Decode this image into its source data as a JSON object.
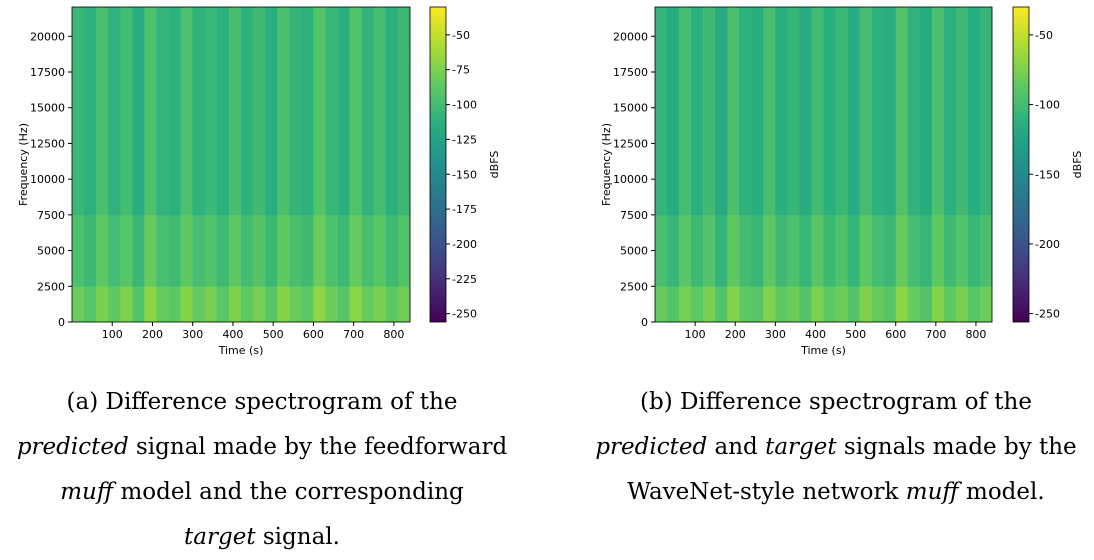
{
  "chart_data": [
    {
      "type": "heatmap",
      "xlabel": "Time (s)",
      "ylabel": "Frequency (Hz)",
      "colorbar_label": "dBFS",
      "xlim": [
        0,
        840
      ],
      "xticks": [
        100,
        200,
        300,
        400,
        500,
        600,
        700,
        800
      ],
      "ylim": [
        0,
        22050
      ],
      "yticks": [
        0,
        2500,
        5000,
        7500,
        10000,
        12500,
        15000,
        17500,
        20000
      ],
      "zlim": [
        -256,
        -30
      ],
      "zticks": [
        -50,
        -75,
        -100,
        -125,
        -150,
        -175,
        -200,
        -225,
        -250
      ],
      "colormap": "viridis",
      "x_bins": [
        0,
        30,
        60,
        90,
        120,
        150,
        180,
        210,
        240,
        270,
        300,
        330,
        360,
        390,
        420,
        450,
        480,
        510,
        540,
        570,
        600,
        630,
        660,
        690,
        720,
        750,
        780,
        810,
        840
      ],
      "y_bins": [
        0,
        2500,
        7500,
        22050
      ],
      "z": [
        [
          -82,
          -90,
          -76,
          -86,
          -75,
          -92,
          -70,
          -84,
          -88,
          -72,
          -85,
          -78,
          -90,
          -74,
          -86,
          -78,
          -90,
          -72,
          -82,
          -88,
          -68,
          -82,
          -90,
          -70,
          -84,
          -76,
          -88,
          -80
        ],
        [
          -95,
          -103,
          -88,
          -100,
          -90,
          -105,
          -84,
          -98,
          -102,
          -86,
          -99,
          -93,
          -103,
          -88,
          -100,
          -92,
          -104,
          -86,
          -97,
          -101,
          -82,
          -96,
          -103,
          -84,
          -98,
          -90,
          -102,
          -94
        ],
        [
          -105,
          -112,
          -98,
          -110,
          -100,
          -115,
          -95,
          -108,
          -112,
          -96,
          -110,
          -104,
          -113,
          -99,
          -110,
          -102,
          -114,
          -97,
          -108,
          -111,
          -92,
          -106,
          -113,
          -94,
          -109,
          -100,
          -112,
          -104
        ]
      ],
      "caption": [
        [
          {
            "text": "(a) Difference spectrogram of the"
          }
        ],
        [
          {
            "text": "predicted",
            "italic": true
          },
          {
            "text": " signal made by the feedforward"
          }
        ],
        [
          {
            "text": "muff",
            "italic": true
          },
          {
            "text": " model and the corresponding"
          }
        ],
        [
          {
            "text": "target",
            "italic": true
          },
          {
            "text": " signal."
          }
        ]
      ]
    },
    {
      "type": "heatmap",
      "xlabel": "Time (s)",
      "ylabel": "Frequency (Hz)",
      "colorbar_label": "dBFS",
      "xlim": [
        0,
        840
      ],
      "xticks": [
        100,
        200,
        300,
        400,
        500,
        600,
        700,
        800
      ],
      "ylim": [
        0,
        22050
      ],
      "yticks": [
        0,
        2500,
        5000,
        7500,
        10000,
        12500,
        15000,
        17500,
        20000
      ],
      "zlim": [
        -256,
        -30
      ],
      "zticks": [
        -50,
        -100,
        -150,
        -200,
        -250
      ],
      "colormap": "viridis",
      "x_bins": [
        0,
        30,
        60,
        90,
        120,
        150,
        180,
        210,
        240,
        270,
        300,
        330,
        360,
        390,
        420,
        450,
        480,
        510,
        540,
        570,
        600,
        630,
        660,
        690,
        720,
        750,
        780,
        810,
        840
      ],
      "y_bins": [
        0,
        2500,
        7500,
        22050
      ],
      "z": [
        [
          -84,
          -92,
          -78,
          -88,
          -76,
          -94,
          -72,
          -86,
          -90,
          -74,
          -87,
          -80,
          -92,
          -76,
          -88,
          -80,
          -92,
          -74,
          -84,
          -90,
          -70,
          -84,
          -92,
          -72,
          -86,
          -78,
          -90,
          -82
        ],
        [
          -98,
          -106,
          -90,
          -103,
          -92,
          -108,
          -86,
          -100,
          -105,
          -88,
          -102,
          -95,
          -106,
          -90,
          -103,
          -94,
          -107,
          -88,
          -100,
          -104,
          -84,
          -99,
          -106,
          -86,
          -101,
          -92,
          -105,
          -97
        ],
        [
          -108,
          -116,
          -100,
          -113,
          -102,
          -118,
          -97,
          -111,
          -115,
          -98,
          -113,
          -106,
          -116,
          -101,
          -113,
          -104,
          -117,
          -99,
          -111,
          -114,
          -94,
          -109,
          -116,
          -96,
          -112,
          -102,
          -115,
          -107
        ]
      ],
      "caption": [
        [
          {
            "text": "(b) Difference spectrogram of the"
          }
        ],
        [
          {
            "text": "predicted",
            "italic": true
          },
          {
            "text": " and "
          },
          {
            "text": "target",
            "italic": true
          },
          {
            "text": " signals made by the"
          }
        ],
        [
          {
            "text": "WaveNet-style network "
          },
          {
            "text": "muff",
            "italic": true
          },
          {
            "text": " model."
          }
        ]
      ]
    }
  ]
}
